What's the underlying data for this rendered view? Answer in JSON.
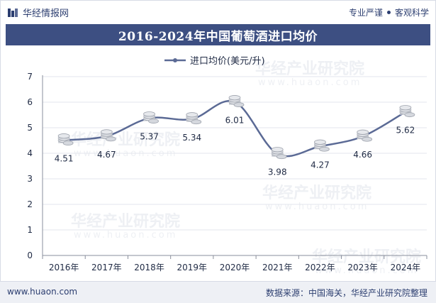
{
  "header": {
    "brand": "华经情报网",
    "tagline_left": "专业严谨",
    "tagline_right": "客观科学"
  },
  "title": "2016-2024年中国葡萄酒进口均价",
  "watermark": "华经产业研究院",
  "watermark_url": "www.huaon.com",
  "colors": {
    "accent": "#3d4f82",
    "line": "#5b6a95",
    "grid": "#e3e6ec"
  },
  "chart_data": {
    "type": "line",
    "title": "2016-2024年中国葡萄酒进口均价",
    "categories": [
      "2016年",
      "2017年",
      "2018年",
      "2019年",
      "2020年",
      "2021年",
      "2022年",
      "2023年",
      "2024年"
    ],
    "series": [
      {
        "name": "进口均价(美元/升)",
        "values": [
          4.51,
          4.67,
          5.37,
          5.34,
          6.01,
          3.98,
          4.27,
          4.66,
          5.62
        ]
      }
    ],
    "data_labels": [
      "4.51",
      "4.67",
      "5.37",
      "5.34",
      "6.01",
      "3.98",
      "4.27",
      "4.66",
      "5.62"
    ],
    "yticks": [
      "0",
      "1",
      "2",
      "3",
      "4",
      "5",
      "6",
      "7"
    ],
    "ylim": [
      0,
      7
    ],
    "xlabel": "",
    "ylabel": "",
    "legend": "top-center"
  },
  "footer": {
    "website": "www.huaon.com",
    "source": "数据来源：中国海关，华经产业研究院整理"
  }
}
